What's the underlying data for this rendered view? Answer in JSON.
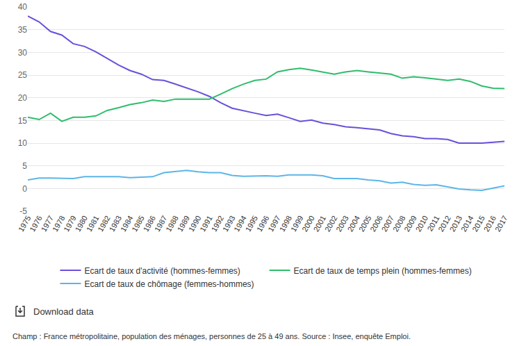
{
  "chart_data": {
    "type": "line",
    "categories": [
      "1975",
      "1976",
      "1977",
      "1978",
      "1979",
      "1980",
      "1981",
      "1982",
      "1983",
      "1984",
      "1985",
      "1986",
      "1987",
      "1988",
      "1989",
      "1990",
      "1991",
      "1992",
      "1993",
      "1994",
      "1995",
      "1996",
      "1997",
      "1998",
      "1999",
      "2000",
      "2001",
      "2002",
      "2003",
      "2004",
      "2005",
      "2006",
      "2007",
      "2008",
      "2009",
      "2010",
      "2011",
      "2012",
      "2013",
      "2014",
      "2015",
      "2016",
      "2017"
    ],
    "series": [
      {
        "name": "Ecart de taux d'activité (hommes-femmes)",
        "color": "#6a4fdb",
        "values": [
          38,
          36.7,
          34.6,
          33.8,
          31.9,
          31.3,
          30.1,
          28.6,
          27.2,
          26,
          25.2,
          24,
          23.8,
          23,
          22.2,
          21.3,
          20.3,
          18.9,
          17.7,
          17.1,
          16.6,
          16.1,
          16.4,
          15.6,
          14.8,
          15.1,
          14.4,
          14.1,
          13.6,
          13.4,
          13.1,
          12.9,
          12.1,
          11.6,
          11.4,
          11,
          11,
          10.8,
          10,
          10,
          10,
          10.2,
          10.4
        ]
      },
      {
        "name": "Ecart de taux de temps plein (hommes-femmes)",
        "color": "#2ebd6b",
        "values": [
          15.7,
          15.2,
          16.6,
          14.8,
          15.7,
          15.7,
          16,
          17.2,
          17.8,
          18.5,
          18.9,
          19.5,
          19.2,
          19.7,
          19.7,
          19.7,
          19.7,
          20.8,
          22,
          23,
          23.8,
          24.1,
          25.7,
          26.2,
          26.5,
          26.1,
          25.7,
          25.2,
          25.7,
          26,
          25.7,
          25.4,
          25.2,
          24.3,
          24.6,
          24.4,
          24.1,
          23.8,
          24.1,
          23.6,
          22.6,
          22.1,
          22
        ]
      },
      {
        "name": "Ecart de taux de chômage (femmes-hommes)",
        "color": "#5cb5e8",
        "values": [
          1.9,
          2.3,
          2.3,
          2.2,
          2.2,
          2.6,
          2.6,
          2.6,
          2.6,
          2.4,
          2.5,
          2.6,
          3.5,
          3.7,
          4,
          3.7,
          3.5,
          3.5,
          2.9,
          2.7,
          2.8,
          2.8,
          2.7,
          3,
          3,
          3,
          2.8,
          2.2,
          2.2,
          2.2,
          1.9,
          1.7,
          1.2,
          1.4,
          0.9,
          0.7,
          0.8,
          0.4,
          -0.1,
          -0.3,
          -0.4,
          0.1,
          0.6
        ]
      }
    ],
    "ylim": [
      -5,
      40
    ],
    "yticks": [
      -5,
      0,
      5,
      10,
      15,
      20,
      25,
      30,
      35,
      40
    ],
    "grid": true,
    "legend": "bottom",
    "annotations": [
      "Download data",
      "Champ : France métropolitaine, population des ménages, personnes de 25 à 49 ans. Source : Insee, enquête Emploi."
    ]
  }
}
